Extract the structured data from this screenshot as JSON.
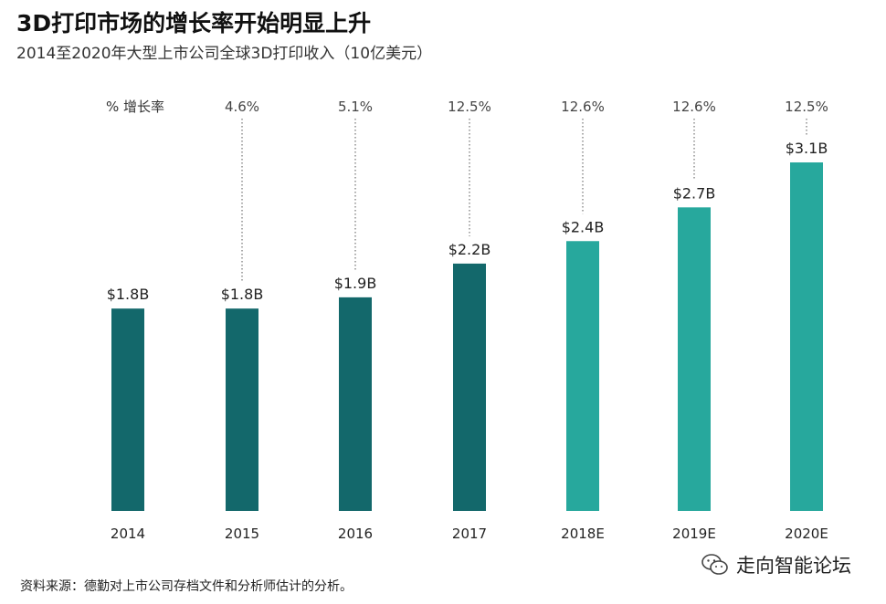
{
  "header": {
    "title": "3D打印市场的增长率开始明显上升",
    "subtitle": "2014至2020年大型上市公司全球3D打印收入（10亿美元）"
  },
  "chart_data": {
    "type": "bar",
    "categories": [
      "2014",
      "2015",
      "2016",
      "2017",
      "2018E",
      "2019E",
      "2020E"
    ],
    "values": [
      1.8,
      1.8,
      1.9,
      2.2,
      2.4,
      2.7,
      3.1
    ],
    "value_labels": [
      "$1.8B",
      "$1.8B",
      "$1.9B",
      "$2.2B",
      "$2.4B",
      "$2.7B",
      "$3.1B"
    ],
    "growth_label": "% 增长率",
    "growth_rates": [
      "",
      "4.6%",
      "5.1%",
      "12.5%",
      "12.6%",
      "12.6%",
      "12.5%"
    ],
    "bar_colors": [
      "#13686b",
      "#13686b",
      "#13686b",
      "#13686b",
      "#27a89d",
      "#27a89d",
      "#27a89d"
    ],
    "ylim": [
      0,
      3.1
    ],
    "grid": false,
    "legend": "none"
  },
  "footer": {
    "source": "资料来源：德勤对上市公司存档文件和分析师估计的分析。",
    "brand": "走向智能论坛",
    "brand_icon": "wechat-icon"
  }
}
